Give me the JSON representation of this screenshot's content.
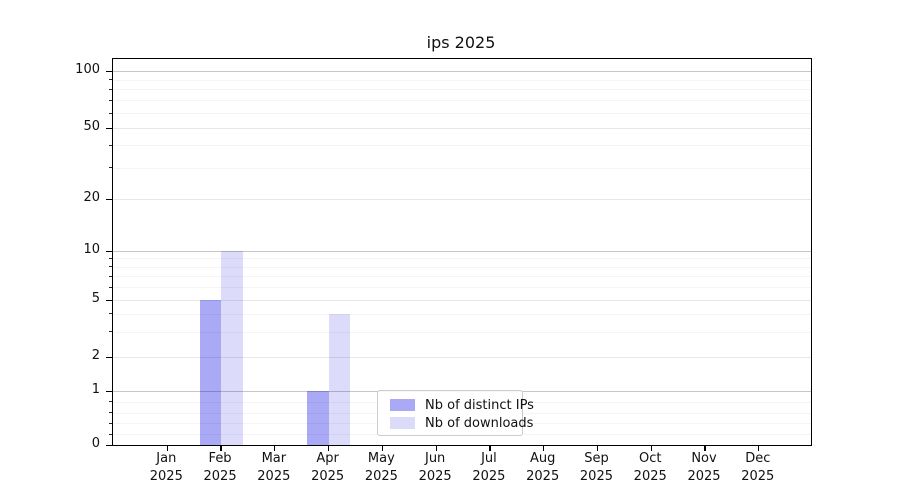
{
  "chart_data": {
    "type": "bar",
    "title": "ips 2025",
    "background": "#ffffff",
    "x_labels": [
      {
        "month": "Jan",
        "year": "2025"
      },
      {
        "month": "Feb",
        "year": "2025"
      },
      {
        "month": "Mar",
        "year": "2025"
      },
      {
        "month": "Apr",
        "year": "2025"
      },
      {
        "month": "May",
        "year": "2025"
      },
      {
        "month": "Jun",
        "year": "2025"
      },
      {
        "month": "Jul",
        "year": "2025"
      },
      {
        "month": "Aug",
        "year": "2025"
      },
      {
        "month": "Sep",
        "year": "2025"
      },
      {
        "month": "Oct",
        "year": "2025"
      },
      {
        "month": "Nov",
        "year": "2025"
      },
      {
        "month": "Dec",
        "year": "2025"
      }
    ],
    "series": [
      {
        "name": "Nb of distinct IPs",
        "color": "#a9a9f6",
        "values": [
          0,
          5,
          0,
          1,
          0,
          0,
          0,
          0,
          0,
          0,
          0,
          0
        ]
      },
      {
        "name": "Nb of downloads",
        "color": "#dcdcfa",
        "values": [
          0,
          10,
          0,
          4,
          0,
          0,
          0,
          0,
          0,
          0,
          0,
          0
        ]
      }
    ],
    "yscale": "symlog",
    "ylim": [
      0,
      100
    ],
    "yticks": [
      0,
      1,
      2,
      5,
      10,
      20,
      50,
      100
    ],
    "ytick_minor": [
      0.2,
      0.4,
      0.6,
      0.8,
      3,
      4,
      6,
      7,
      8,
      9,
      30,
      40,
      60,
      70,
      80,
      90
    ],
    "grid": true,
    "legend_position": "lower center",
    "axis_color": "#000000",
    "text_color": "#111111"
  }
}
